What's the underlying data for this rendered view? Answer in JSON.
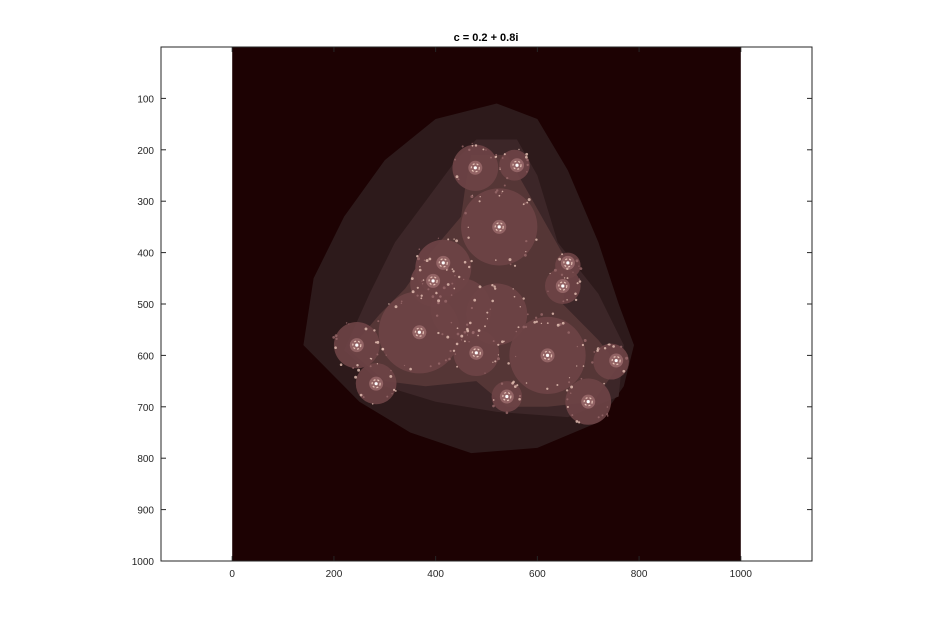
{
  "chart_data": {
    "type": "heatmap",
    "title": "c = 0.2 + 0.8i",
    "xlabel": "",
    "ylabel": "",
    "xlim": [
      -140,
      1140
    ],
    "ylim": [
      0,
      1000
    ],
    "y_reversed": true,
    "x_ticks": [
      0,
      200,
      400,
      600,
      800,
      1000
    ],
    "y_ticks": [
      100,
      200,
      300,
      400,
      500,
      600,
      700,
      800,
      900,
      1000
    ],
    "image_extent": {
      "x": [
        0,
        1000
      ],
      "y": [
        0,
        1000
      ]
    },
    "colormap": "pink",
    "grid": false,
    "colors": {
      "background": "#1d0203",
      "level1": "#2d1a1b",
      "level2": "#3c2628",
      "level3": "#553636",
      "level4": "#6e4446",
      "core": "#9a6a6b",
      "highlight": "#e8c4b8"
    },
    "spirals": [
      {
        "x": 478,
        "y": 235
      },
      {
        "x": 560,
        "y": 230
      },
      {
        "x": 525,
        "y": 350
      },
      {
        "x": 415,
        "y": 420
      },
      {
        "x": 395,
        "y": 455
      },
      {
        "x": 620,
        "y": 600
      },
      {
        "x": 540,
        "y": 680
      },
      {
        "x": 700,
        "y": 690
      },
      {
        "x": 755,
        "y": 610
      },
      {
        "x": 368,
        "y": 555
      },
      {
        "x": 245,
        "y": 580
      },
      {
        "x": 283,
        "y": 655
      },
      {
        "x": 650,
        "y": 465
      },
      {
        "x": 480,
        "y": 595
      },
      {
        "x": 660,
        "y": 420
      }
    ]
  }
}
